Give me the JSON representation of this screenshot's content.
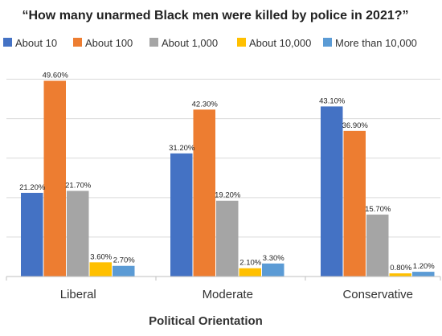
{
  "chart_data": {
    "type": "bar",
    "title": "“How many unarmed Black men were killed by police in 2021?”",
    "xlabel": "Political Orientation",
    "ylabel": "",
    "ylim": [
      0,
      55
    ],
    "grid": true,
    "legend_position": "top",
    "categories": [
      "Liberal",
      "Moderate",
      "Conservative"
    ],
    "series": [
      {
        "name": "About 10",
        "color": "#4472C4",
        "values": [
          21.2,
          31.2,
          43.1
        ],
        "labels": [
          "21.20%",
          "31.20%",
          "43.10%"
        ]
      },
      {
        "name": "About 100",
        "color": "#ED7D31",
        "values": [
          49.6,
          42.3,
          36.9
        ],
        "labels": [
          "49.60%",
          "42.30%",
          "36.90%"
        ]
      },
      {
        "name": "About 1,000",
        "color": "#A5A5A5",
        "values": [
          21.7,
          19.2,
          15.7
        ],
        "labels": [
          "21.70%",
          "19.20%",
          "15.70%"
        ]
      },
      {
        "name": "About 10,000",
        "color": "#FFC000",
        "values": [
          3.6,
          2.1,
          0.8
        ],
        "labels": [
          "3.60%",
          "2.10%",
          "0.80%"
        ]
      },
      {
        "name": "More than 10,000",
        "color": "#5B9BD5",
        "values": [
          2.7,
          3.3,
          1.2
        ],
        "labels": [
          "2.70%",
          "3.30%",
          "1.20%"
        ]
      }
    ]
  }
}
